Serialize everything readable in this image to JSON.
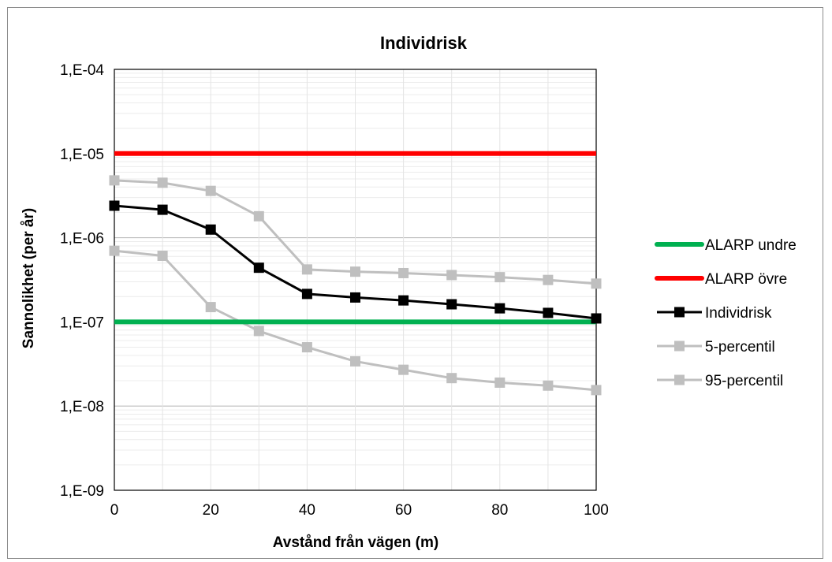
{
  "chart_data": {
    "type": "line",
    "title": "Individrisk",
    "xlabel": "Avstånd från vägen (m)",
    "ylabel": "Sannolikhet (per år)",
    "x": [
      0,
      10,
      20,
      30,
      40,
      50,
      60,
      70,
      80,
      90,
      100
    ],
    "xlim": [
      0,
      100
    ],
    "x_ticks": [
      0,
      20,
      40,
      60,
      80,
      100
    ],
    "x_tick_labels": [
      "0",
      "20",
      "40",
      "60",
      "80",
      "100"
    ],
    "ylim": [
      1e-09,
      0.0001
    ],
    "y_scale": "log",
    "y_ticks": [
      1e-09,
      1e-08,
      1e-07,
      1e-06,
      1e-05,
      0.0001
    ],
    "y_tick_labels": [
      "1,E-09",
      "1,E-08",
      "1,E-07",
      "1,E-06",
      "1,E-05",
      "1,E-04"
    ],
    "grid": true,
    "legend_position": "right",
    "series": [
      {
        "name": "ALARP undre",
        "color": "#00b050",
        "marker": "none",
        "values": [
          1e-07,
          1e-07,
          1e-07,
          1e-07,
          1e-07,
          1e-07,
          1e-07,
          1e-07,
          1e-07,
          1e-07,
          1e-07
        ]
      },
      {
        "name": "ALARP övre",
        "color": "#ff0000",
        "marker": "none",
        "values": [
          1e-05,
          1e-05,
          1e-05,
          1e-05,
          1e-05,
          1e-05,
          1e-05,
          1e-05,
          1e-05,
          1e-05,
          1e-05
        ]
      },
      {
        "name": "Individrisk",
        "color": "#000000",
        "marker": "square",
        "values": [
          2.4e-06,
          2.15e-06,
          1.25e-06,
          4.4e-07,
          2.15e-07,
          1.95e-07,
          1.8e-07,
          1.62e-07,
          1.45e-07,
          1.28e-07,
          1.1e-07
        ]
      },
      {
        "name": "5-percentil",
        "color": "#bfbfbf",
        "marker": "square",
        "values": [
          7e-07,
          6.1e-07,
          1.5e-07,
          7.8e-08,
          5e-08,
          3.4e-08,
          2.7e-08,
          2.15e-08,
          1.9e-08,
          1.75e-08,
          1.55e-08
        ]
      },
      {
        "name": "95-percentil",
        "color": "#bfbfbf",
        "marker": "square",
        "values": [
          4.8e-06,
          4.5e-06,
          3.6e-06,
          1.8e-06,
          4.2e-07,
          3.95e-07,
          3.8e-07,
          3.6e-07,
          3.4e-07,
          3.15e-07,
          2.85e-07
        ]
      }
    ]
  }
}
